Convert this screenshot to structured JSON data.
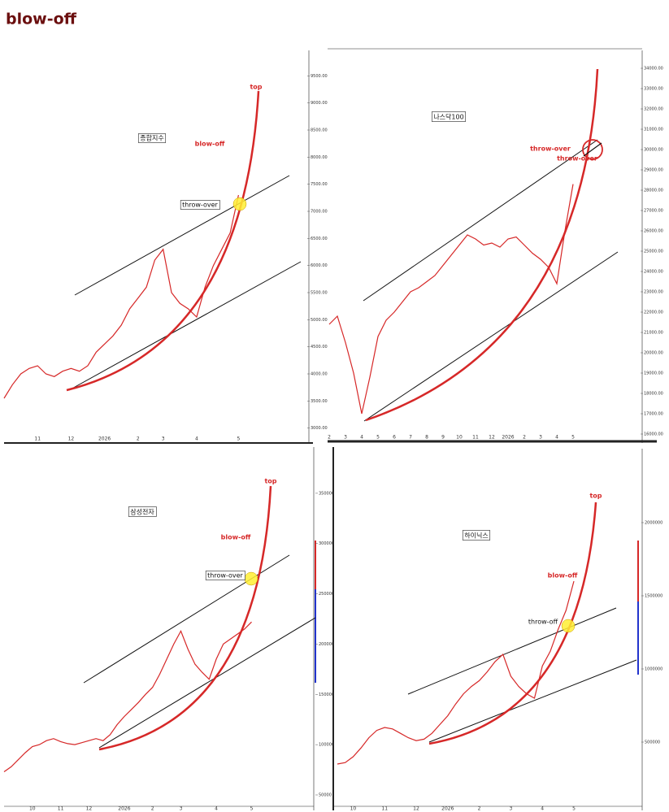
{
  "header": {
    "title": "blow-off"
  },
  "chart_data": [
    {
      "type": "line",
      "title": "종합지수",
      "annotations": [
        "blow-off",
        "top",
        "throw-over"
      ],
      "color": "#d62828",
      "categories": [
        null,
        null,
        null,
        null,
        "11",
        null,
        null,
        null,
        "12",
        null,
        null,
        null,
        "2026",
        null,
        null,
        null,
        "2",
        null,
        null,
        "3",
        null,
        null,
        null,
        "4",
        null,
        null,
        null,
        null,
        "5",
        null,
        null,
        null,
        null,
        null,
        null,
        null
      ],
      "values": [
        3550,
        3800,
        4000,
        4100,
        4150,
        4000,
        3950,
        4050,
        4100,
        4050,
        4150,
        4400,
        4550,
        4700,
        4900,
        5200,
        5400,
        5600,
        6100,
        6300,
        5500,
        5300,
        5200,
        5050,
        5600,
        6000,
        6300,
        6600,
        7300,
        null,
        null,
        null,
        null,
        null,
        null,
        null
      ],
      "ylim": [
        2800,
        10000
      ],
      "yticks": [
        {
          "value": 3000,
          "label": "3000.00"
        },
        {
          "value": 3500,
          "label": "3500.00"
        },
        {
          "value": 4000,
          "label": "4000.00"
        },
        {
          "value": 4500,
          "label": "4500.00"
        },
        {
          "value": 5000,
          "label": "5000.00"
        },
        {
          "value": 5500,
          "label": "5500.00"
        },
        {
          "value": 6000,
          "label": "6000.00"
        },
        {
          "value": 6500,
          "label": "6500.00"
        },
        {
          "value": 7000,
          "label": "7000.00"
        },
        {
          "value": 7500,
          "label": "7500.00"
        },
        {
          "value": 8000,
          "label": "8000.00"
        },
        {
          "value": 8500,
          "label": "8500.00"
        },
        {
          "value": 9000,
          "label": "9000.00"
        },
        {
          "value": 9500,
          "label": "9500.00"
        }
      ]
    },
    {
      "type": "line",
      "title": "나스닥100",
      "annotations": [
        "throw-over",
        "throw-over"
      ],
      "color": "#d62828",
      "categories": [
        "2",
        null,
        "3",
        null,
        "4",
        null,
        "5",
        null,
        "6",
        null,
        "7",
        null,
        "8",
        null,
        "9",
        null,
        "10",
        null,
        "11",
        null,
        "12",
        null,
        "2026",
        null,
        "2",
        null,
        "3",
        null,
        "4",
        null,
        "5",
        null,
        null,
        null,
        null,
        null,
        null,
        null,
        null
      ],
      "values": [
        21400,
        21800,
        20500,
        19000,
        17000,
        18800,
        20800,
        21600,
        22000,
        22500,
        23000,
        23200,
        23500,
        23800,
        24300,
        24800,
        25300,
        25800,
        25600,
        25300,
        25400,
        25200,
        25600,
        25700,
        25300,
        24900,
        24600,
        24200,
        23400,
        26000,
        28300,
        null,
        null,
        null,
        null,
        null,
        null,
        null,
        null
      ],
      "ylim": [
        15760,
        34960
      ],
      "yticks": [
        {
          "value": 16000,
          "label": "16000.00"
        },
        {
          "value": 17000,
          "label": "17000.00"
        },
        {
          "value": 18000,
          "label": "18000.00"
        },
        {
          "value": 19000,
          "label": "19000.00"
        },
        {
          "value": 20000,
          "label": "20000.00"
        },
        {
          "value": 21000,
          "label": "21000.00"
        },
        {
          "value": 22000,
          "label": "22000.00"
        },
        {
          "value": 23000,
          "label": "23000.00"
        },
        {
          "value": 24000,
          "label": "24000.00"
        },
        {
          "value": 25000,
          "label": "25000.00"
        },
        {
          "value": 26000,
          "label": "26000.00"
        },
        {
          "value": 27000,
          "label": "27000.00"
        },
        {
          "value": 28000,
          "label": "28000.00"
        },
        {
          "value": 29000,
          "label": "29000.00"
        },
        {
          "value": 30000,
          "label": "30000.00"
        },
        {
          "value": 31000,
          "label": "31000.00"
        },
        {
          "value": 32000,
          "label": "32000.00"
        },
        {
          "value": 33000,
          "label": "33000.00"
        },
        {
          "value": 34000,
          "label": "34000.00"
        }
      ]
    },
    {
      "type": "line",
      "title": "삼성전자",
      "annotations": [
        "blow-off",
        "top",
        "throw-over"
      ],
      "color": "#d62828",
      "categories": [
        null,
        null,
        null,
        null,
        "10",
        null,
        null,
        null,
        "11",
        null,
        null,
        null,
        "12",
        null,
        null,
        null,
        null,
        "2026",
        null,
        null,
        null,
        "2",
        null,
        null,
        null,
        "3",
        null,
        null,
        null,
        null,
        "4",
        null,
        null,
        null,
        null,
        "5",
        null,
        null,
        null,
        null,
        null,
        null,
        null
      ],
      "values": [
        73000,
        78000,
        85000,
        92000,
        98000,
        100000,
        104000,
        106000,
        103000,
        101000,
        100000,
        102000,
        104000,
        106000,
        104000,
        110000,
        120000,
        128000,
        135000,
        142000,
        150000,
        157000,
        170000,
        185000,
        200000,
        213000,
        195000,
        180000,
        172000,
        165000,
        185000,
        200000,
        205000,
        210000,
        215000,
        222000,
        null,
        null,
        null,
        null,
        null,
        null,
        null
      ],
      "ylim": [
        40300,
        387900
      ],
      "yticks": [
        50000,
        100000,
        150000,
        200000,
        250000,
        300000,
        350000
      ]
    },
    {
      "type": "line",
      "title": "하이닉스",
      "annotations": [
        "blow-off",
        "top",
        "throw-off"
      ],
      "color": "#d62828",
      "categories": [
        null,
        null,
        "10",
        null,
        null,
        null,
        "11",
        null,
        null,
        null,
        "12",
        null,
        null,
        null,
        "2026",
        null,
        null,
        null,
        "2",
        null,
        null,
        null,
        "3",
        null,
        null,
        null,
        "4",
        null,
        null,
        null,
        "5",
        null,
        null,
        null,
        null,
        null,
        null,
        null,
        null
      ],
      "values": [
        350000,
        360000,
        400000,
        460000,
        530000,
        580000,
        600000,
        590000,
        560000,
        530000,
        510000,
        520000,
        560000,
        620000,
        680000,
        760000,
        830000,
        880000,
        920000,
        980000,
        1050000,
        1100000,
        950000,
        880000,
        830000,
        800000,
        1020000,
        1120000,
        1270000,
        1400000,
        1600000,
        null,
        null,
        null,
        null,
        null,
        null,
        null,
        null
      ],
      "ylim": [
        72200,
        2461100
      ],
      "yticks": [
        500000,
        1000000,
        1500000,
        2000000
      ]
    }
  ]
}
